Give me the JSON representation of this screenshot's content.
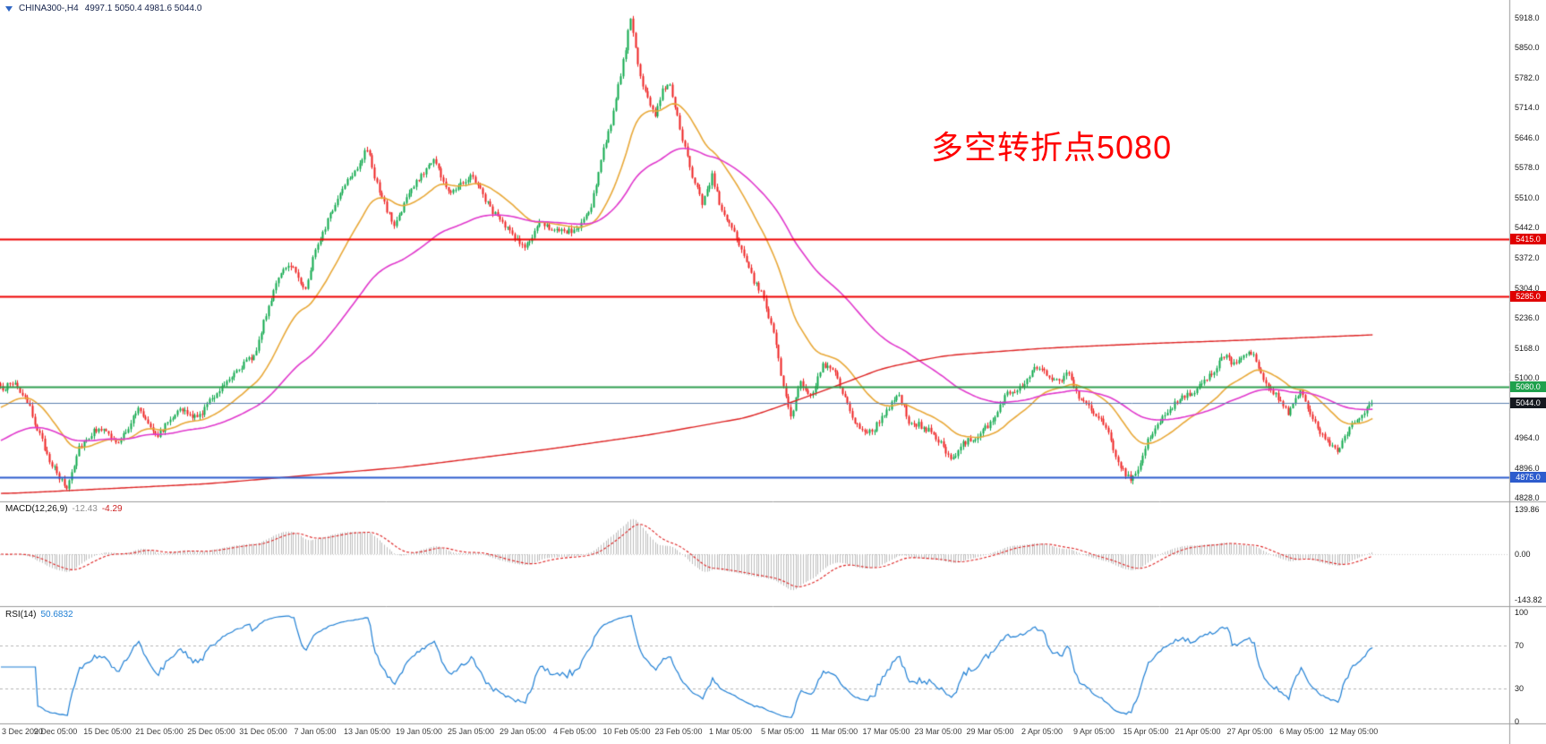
{
  "symbol_bar": {
    "title": "CHINA300-,H4",
    "ohlc": "4997.1 5050.4 4981.6 5044.0"
  },
  "annotation": {
    "text": "多空转折点5080",
    "color": "#ff0000"
  },
  "macd_panel": {
    "label": "MACD(12,26,9)",
    "value_main": "-12.43",
    "value_signal": "-4.29"
  },
  "rsi_panel": {
    "label": "RSI(14)",
    "value": "50.6832"
  },
  "colors": {
    "candle_up": "#0fa84c",
    "candle_down": "#ee2222",
    "ma_fast": "#e8a838",
    "ma_mid": "#e038cc",
    "ma_slow": "#dd2222",
    "macd_hist": "#bcbcbc",
    "macd_signal": "#dd2222",
    "rsi_line": "#1f7fd4",
    "resistance": "#ee0000",
    "pivot": "#2e9e4f",
    "support": "#2d5ccd",
    "last_price_line": "#5b7fae"
  },
  "price_axis": {
    "ticks": [
      {
        "label": "5918.0",
        "value": 5918
      },
      {
        "label": "5850.0",
        "value": 5850
      },
      {
        "label": "5782.0",
        "value": 5782
      },
      {
        "label": "5714.0",
        "value": 5714
      },
      {
        "label": "5646.0",
        "value": 5646
      },
      {
        "label": "5578.0",
        "value": 5578
      },
      {
        "label": "5510.0",
        "value": 5510
      },
      {
        "label": "5442.0",
        "value": 5442
      },
      {
        "label": "5372.0",
        "value": 5372
      },
      {
        "label": "5304.0",
        "value": 5304
      },
      {
        "label": "5236.0",
        "value": 5236
      },
      {
        "label": "5168.0",
        "value": 5168
      },
      {
        "label": "5100.0",
        "value": 5100
      },
      {
        "label": "4964.0",
        "value": 4964
      },
      {
        "label": "4896.0",
        "value": 4896
      },
      {
        "label": "4828.0",
        "value": 4828
      }
    ],
    "badges": [
      {
        "label": "5415.0",
        "value": 5415,
        "bg": "#e00000"
      },
      {
        "label": "5285.0",
        "value": 5285,
        "bg": "#e00000"
      },
      {
        "label": "5080.0",
        "value": 5080,
        "bg": "#1fa14d"
      },
      {
        "label": "5044.0",
        "value": 5044,
        "bg": "#15191f"
      },
      {
        "label": "4875.0",
        "value": 4875,
        "bg": "#2d5ccd"
      }
    ]
  },
  "time_axis": {
    "ticks": [
      "3 Dec 2020",
      "9 Dec 05:00",
      "15 Dec 05:00",
      "21 Dec 05:00",
      "25 Dec 05:00",
      "31 Dec 05:00",
      "7 Jan 05:00",
      "13 Jan 05:00",
      "19 Jan 05:00",
      "25 Jan 05:00",
      "29 Jan 05:00",
      "4 Feb 05:00",
      "10 Feb 05:00",
      "23 Feb 05:00",
      "1 Mar 05:00",
      "5 Mar 05:00",
      "11 Mar 05:00",
      "17 Mar 05:00",
      "23 Mar 05:00",
      "29 Mar 05:00",
      "2 Apr 05:00",
      "9 Apr 05:00",
      "15 Apr 05:00",
      "21 Apr 05:00",
      "27 Apr 05:00",
      "6 May 05:00",
      "12 May 05:00"
    ]
  },
  "chart_data": {
    "type": "candlestick",
    "symbol": "CHINA300-",
    "timeframe": "H4",
    "last_ohlc": {
      "open": 4997.1,
      "high": 5050.4,
      "low": 4981.6,
      "close": 5044.0
    },
    "n_candles": 558,
    "y_range": [
      4828,
      5918
    ],
    "close_anchors": [
      [
        0,
        5075
      ],
      [
        6,
        5090
      ],
      [
        12,
        5030
      ],
      [
        18,
        4940
      ],
      [
        23,
        4880
      ],
      [
        27,
        4850
      ],
      [
        32,
        4945
      ],
      [
        40,
        4990
      ],
      [
        48,
        4950
      ],
      [
        56,
        5030
      ],
      [
        64,
        4970
      ],
      [
        72,
        5030
      ],
      [
        80,
        5008
      ],
      [
        86,
        5055
      ],
      [
        95,
        5115
      ],
      [
        103,
        5150
      ],
      [
        107,
        5225
      ],
      [
        112,
        5320
      ],
      [
        118,
        5360
      ],
      [
        124,
        5300
      ],
      [
        128,
        5395
      ],
      [
        134,
        5470
      ],
      [
        140,
        5545
      ],
      [
        145,
        5580
      ],
      [
        149,
        5620
      ],
      [
        154,
        5520
      ],
      [
        160,
        5445
      ],
      [
        166,
        5520
      ],
      [
        171,
        5560
      ],
      [
        176,
        5600
      ],
      [
        182,
        5520
      ],
      [
        187,
        5545
      ],
      [
        192,
        5560
      ],
      [
        198,
        5495
      ],
      [
        204,
        5450
      ],
      [
        209,
        5420
      ],
      [
        213,
        5395
      ],
      [
        220,
        5455
      ],
      [
        227,
        5430
      ],
      [
        234,
        5435
      ],
      [
        240,
        5485
      ],
      [
        244,
        5600
      ],
      [
        249,
        5700
      ],
      [
        253,
        5820
      ],
      [
        256,
        5915
      ],
      [
        259,
        5810
      ],
      [
        262,
        5745
      ],
      [
        266,
        5700
      ],
      [
        269,
        5755
      ],
      [
        272,
        5770
      ],
      [
        277,
        5640
      ],
      [
        281,
        5555
      ],
      [
        285,
        5500
      ],
      [
        289,
        5560
      ],
      [
        293,
        5480
      ],
      [
        297,
        5440
      ],
      [
        302,
        5380
      ],
      [
        306,
        5320
      ],
      [
        310,
        5285
      ],
      [
        314,
        5200
      ],
      [
        318,
        5080
      ],
      [
        321,
        5010
      ],
      [
        325,
        5090
      ],
      [
        329,
        5060
      ],
      [
        334,
        5130
      ],
      [
        339,
        5110
      ],
      [
        344,
        5040
      ],
      [
        348,
        4990
      ],
      [
        354,
        4975
      ],
      [
        360,
        5030
      ],
      [
        365,
        5060
      ],
      [
        369,
        5000
      ],
      [
        375,
        4990
      ],
      [
        381,
        4960
      ],
      [
        386,
        4910
      ],
      [
        391,
        4950
      ],
      [
        397,
        4970
      ],
      [
        403,
        5000
      ],
      [
        408,
        5060
      ],
      [
        416,
        5090
      ],
      [
        420,
        5130
      ],
      [
        424,
        5110
      ],
      [
        428,
        5090
      ],
      [
        434,
        5110
      ],
      [
        438,
        5060
      ],
      [
        445,
        5020
      ],
      [
        450,
        4970
      ],
      [
        455,
        4900
      ],
      [
        459,
        4868
      ],
      [
        463,
        4905
      ],
      [
        466,
        4960
      ],
      [
        472,
        5010
      ],
      [
        478,
        5050
      ],
      [
        487,
        5080
      ],
      [
        492,
        5110
      ],
      [
        497,
        5150
      ],
      [
        502,
        5130
      ],
      [
        508,
        5160
      ],
      [
        513,
        5100
      ],
      [
        518,
        5060
      ],
      [
        523,
        5020
      ],
      [
        528,
        5075
      ],
      [
        533,
        5010
      ],
      [
        538,
        4955
      ],
      [
        543,
        4935
      ],
      [
        548,
        4985
      ],
      [
        553,
        5020
      ],
      [
        557,
        5044
      ]
    ],
    "overlays": {
      "ma_fast": {
        "type": "ema",
        "period": 28,
        "seed": 5030
      },
      "ma_mid": {
        "type": "ema",
        "period": 80,
        "seed": 4955
      },
      "ma_slow_anchors": [
        [
          0,
          4838
        ],
        [
          80,
          4860
        ],
        [
          160,
          4898
        ],
        [
          220,
          4940
        ],
        [
          260,
          4972
        ],
        [
          300,
          5012
        ],
        [
          330,
          5072
        ],
        [
          355,
          5125
        ],
        [
          380,
          5152
        ],
        [
          420,
          5168
        ],
        [
          460,
          5178
        ],
        [
          500,
          5186
        ],
        [
          530,
          5193
        ],
        [
          557,
          5199
        ]
      ]
    },
    "levels": [
      {
        "value": 5415,
        "kind": "resistance",
        "color": "#ee0000",
        "width": 2
      },
      {
        "value": 5285,
        "kind": "resistance",
        "color": "#ee0000",
        "width": 2
      },
      {
        "value": 5080,
        "kind": "pivot",
        "color": "#2e9e4f",
        "width": 2
      },
      {
        "value": 5044,
        "kind": "last-price",
        "color": "#5b7fae",
        "width": 1
      },
      {
        "value": 4875,
        "kind": "support",
        "color": "#2d5ccd",
        "width": 2
      }
    ],
    "indicators": {
      "macd": {
        "fast": 12,
        "slow": 26,
        "signal": 9,
        "current_main": -12.43,
        "current_signal": -4.29,
        "axis": [
          139.86,
          0,
          -143.82
        ]
      },
      "rsi": {
        "period": 14,
        "current": 50.6832,
        "axis": [
          100,
          70,
          30,
          0
        ],
        "levels": [
          70,
          30
        ]
      }
    }
  }
}
